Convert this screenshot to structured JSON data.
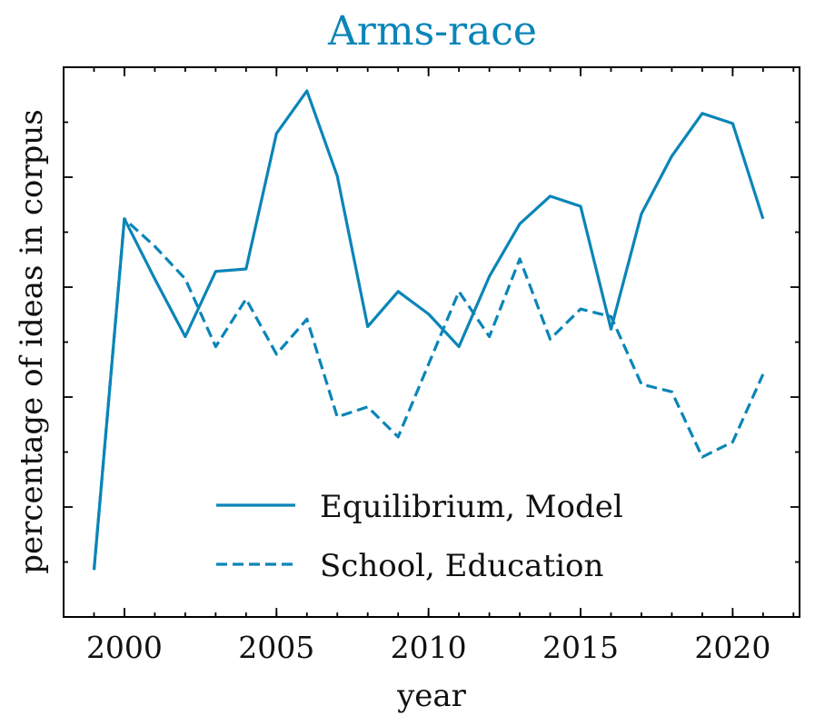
{
  "chart_data": {
    "type": "line",
    "title": "Arms-race",
    "xlabel": "year",
    "ylabel": "percentage of ideas in corpus",
    "xlim": [
      1998,
      2022.2
    ],
    "ylim": [
      0,
      1
    ],
    "x_major_ticks": [
      2000,
      2005,
      2010,
      2015,
      2020
    ],
    "x_tick_labels": [
      "2000",
      "2005",
      "2010",
      "2015",
      "2020"
    ],
    "x_minor_step": 1,
    "y_tick_labels_visible": false,
    "grid": false,
    "legend_position": "bottom-center",
    "color": "#0a85b8",
    "x": [
      1999,
      2000,
      2001,
      2002,
      2003,
      2004,
      2005,
      2006,
      2007,
      2008,
      2009,
      2010,
      2011,
      2012,
      2013,
      2014,
      2015,
      2016,
      2017,
      2018,
      2019,
      2020,
      2021
    ],
    "series": [
      {
        "name": "Equilibrium, Model",
        "style": "solid",
        "values": [
          0.045,
          0.745,
          0.625,
          0.51,
          0.64,
          0.645,
          0.915,
          1.0,
          0.83,
          0.53,
          0.6,
          0.555,
          0.49,
          0.63,
          0.735,
          0.79,
          0.77,
          0.525,
          0.755,
          0.87,
          0.955,
          0.935,
          0.745
        ]
      },
      {
        "name": "School, Education",
        "style": "dashed",
        "values": [
          0.045,
          0.745,
          0.69,
          0.625,
          0.49,
          0.585,
          0.475,
          0.545,
          0.35,
          0.37,
          0.31,
          0.455,
          0.6,
          0.51,
          0.665,
          0.505,
          0.565,
          0.55,
          0.415,
          0.4,
          0.27,
          0.3,
          0.435
        ]
      }
    ]
  }
}
